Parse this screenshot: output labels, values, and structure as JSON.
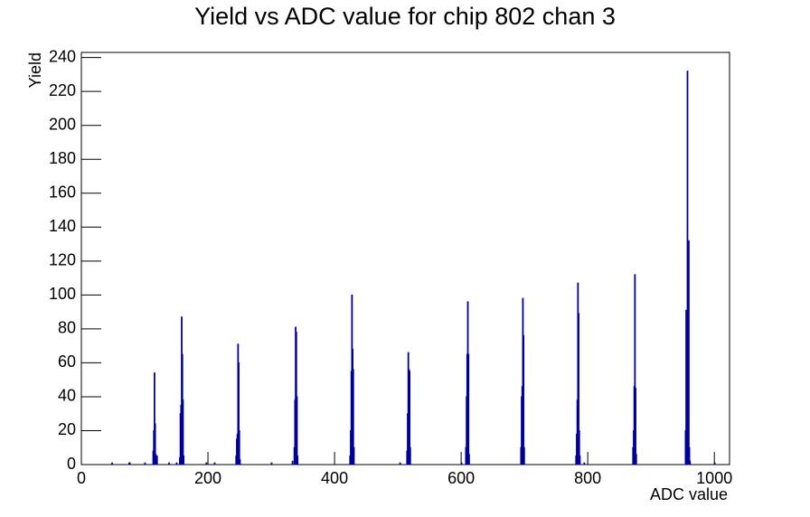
{
  "chart_data": {
    "type": "histogram",
    "title": "Yield vs ADC value for chip 802 chan 3",
    "x_label": "ADC value",
    "y_label": "Yield",
    "color": "#000099",
    "x": [
      48,
      75,
      76,
      100,
      113,
      114,
      115,
      116,
      117,
      119,
      138,
      150,
      155,
      156,
      157,
      158,
      159,
      160,
      161,
      197,
      210,
      244,
      245,
      246,
      247,
      248,
      249,
      250,
      300,
      333,
      336,
      337,
      338,
      339,
      340,
      341,
      424,
      425,
      426,
      427,
      428,
      429,
      430,
      503,
      514,
      515,
      516,
      517,
      518,
      519,
      600,
      607,
      608,
      609,
      610,
      611,
      612,
      694,
      695,
      696,
      697,
      698,
      699,
      781,
      782,
      783,
      784,
      785,
      786,
      787,
      794,
      871,
      872,
      873,
      874,
      875,
      876,
      954,
      955,
      956,
      957,
      958,
      959,
      960,
      961,
      1000
    ],
    "values": [
      1,
      1,
      1,
      1,
      8,
      20,
      54,
      24,
      6,
      5,
      1,
      1,
      4,
      30,
      35,
      87,
      65,
      38,
      5,
      1,
      1,
      5,
      15,
      18,
      71,
      60,
      20,
      3,
      1,
      2,
      10,
      38,
      81,
      78,
      40,
      5,
      5,
      20,
      55,
      100,
      68,
      56,
      10,
      1,
      8,
      30,
      66,
      56,
      55,
      10,
      1,
      10,
      40,
      65,
      96,
      65,
      6,
      10,
      40,
      46,
      98,
      76,
      10,
      5,
      18,
      38,
      107,
      89,
      20,
      5,
      1,
      10,
      20,
      46,
      112,
      45,
      6,
      20,
      91,
      84,
      232,
      51,
      132,
      10,
      2,
      1
    ],
    "xlim": [
      0,
      1024
    ],
    "ylim": [
      0,
      243
    ],
    "xticks": [
      0,
      200,
      400,
      600,
      800,
      1000
    ],
    "yticks": [
      0,
      20,
      40,
      60,
      80,
      100,
      120,
      140,
      160,
      180,
      200,
      220,
      240
    ]
  }
}
